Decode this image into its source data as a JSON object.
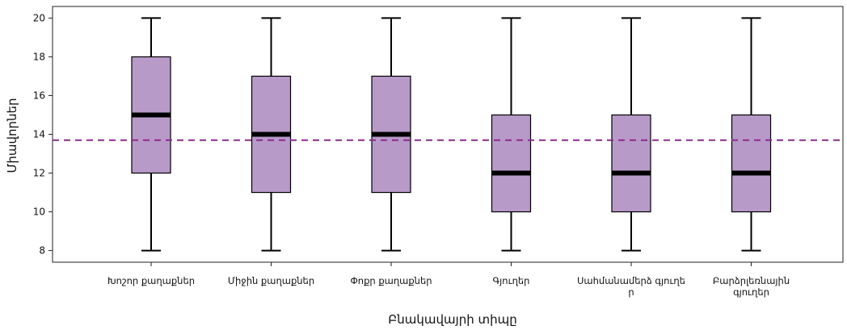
{
  "chart_data": {
    "type": "boxplot",
    "title": "",
    "xlabel": "Բնակավայրի տիպը",
    "ylabel": "Միավորներ",
    "ylim": [
      7.4,
      20.6
    ],
    "yticks": [
      8,
      10,
      12,
      14,
      16,
      18,
      20
    ],
    "grid": false,
    "legend": "none",
    "box_color": "#b89ac9",
    "median_color": "#000000",
    "reference_line": {
      "value": 13.7,
      "style": "dashed",
      "color": "#8b2b8c"
    },
    "categories": [
      {
        "label": [
          "Խոշոր քաղաքներ"
        ],
        "min": 8,
        "q1": 12,
        "median": 15,
        "q3": 18,
        "max": 20
      },
      {
        "label": [
          "Միջին քաղաքներ"
        ],
        "min": 8,
        "q1": 11,
        "median": 14,
        "q3": 17,
        "max": 20
      },
      {
        "label": [
          "Փոքր քաղաքներ"
        ],
        "min": 8,
        "q1": 11,
        "median": 14,
        "q3": 17,
        "max": 20
      },
      {
        "label": [
          "Գյուղեր"
        ],
        "min": 8,
        "q1": 10,
        "median": 12,
        "q3": 15,
        "max": 20
      },
      {
        "label": [
          "Սահմանամերձ գյուղե",
          "ր"
        ],
        "min": 8,
        "q1": 10,
        "median": 12,
        "q3": 15,
        "max": 20
      },
      {
        "label": [
          "Բարձրլեռնային",
          "գյուղեր"
        ],
        "min": 8,
        "q1": 10,
        "median": 12,
        "q3": 15,
        "max": 20
      }
    ]
  }
}
